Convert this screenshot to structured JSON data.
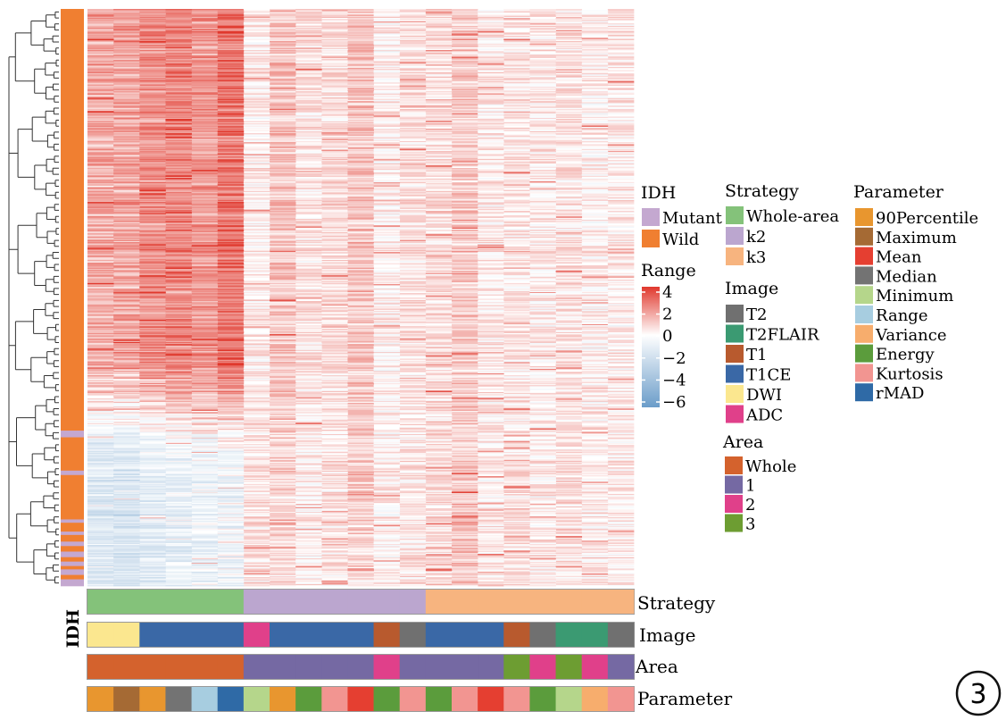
{
  "chart_data": {
    "type": "heatmap",
    "n_columns": 21,
    "row_annotation": {
      "title": "IDH",
      "categories": [
        "Mutant",
        "Wild"
      ],
      "colors": {
        "Mutant": "#c4a8d0",
        "Wild": "#f07f31"
      },
      "segments": [
        {
          "label": "Wild",
          "rows": 380
        },
        {
          "label": "Mutant",
          "rows": 6
        },
        {
          "label": "Wild",
          "rows": 30
        },
        {
          "label": "Mutant",
          "rows": 4
        },
        {
          "label": "Wild",
          "rows": 40
        },
        {
          "label": "Mutant",
          "rows": 3
        },
        {
          "label": "Wild",
          "rows": 8
        },
        {
          "label": "Mutant",
          "rows": 3
        },
        {
          "label": "Wild",
          "rows": 6
        },
        {
          "label": "Mutant",
          "rows": 4
        },
        {
          "label": "Wild",
          "rows": 5
        },
        {
          "label": "Mutant",
          "rows": 5
        },
        {
          "label": "Wild",
          "rows": 4
        },
        {
          "label": "Mutant",
          "rows": 4
        },
        {
          "label": "Wild",
          "rows": 3
        },
        {
          "label": "Mutant",
          "rows": 5
        },
        {
          "label": "Wild",
          "rows": 4
        },
        {
          "label": "Mutant",
          "rows": 6
        }
      ]
    },
    "color_scale": {
      "title": "Range",
      "ticks": [
        "4",
        "2",
        "0",
        "−2",
        "−4",
        "−6"
      ],
      "min": -6,
      "max": 4,
      "low_color": "#6a9cc9",
      "mid_color": "#ffffff",
      "high_color": "#e0382d"
    },
    "column_means": {
      "top_block": [
        1.6,
        1.7,
        2.2,
        2.4,
        2.0,
        2.7,
        0.4,
        1.2,
        0.6,
        0.7,
        1.1,
        0.3,
        0.6,
        0.7,
        1.0,
        0.4,
        0.5,
        0.4,
        0.6,
        0.3,
        0.4
      ],
      "bottom_block": [
        -1.3,
        -1.5,
        -1.0,
        -0.8,
        -0.6,
        -0.5,
        0.6,
        0.8,
        0.3,
        0.5,
        0.9,
        0.3,
        0.5,
        0.7,
        1.1,
        0.4,
        0.6,
        0.4,
        0.6,
        0.4,
        0.4
      ]
    },
    "column_annotations": [
      {
        "title": "Strategy",
        "categories": [
          "Whole-area",
          "k2",
          "k3"
        ],
        "colors": {
          "Whole-area": "#84c27a",
          "k2": "#bba6cf",
          "k3": "#f7b47f"
        },
        "values": [
          "Whole-area",
          "Whole-area",
          "Whole-area",
          "Whole-area",
          "Whole-area",
          "Whole-area",
          "k2",
          "k2",
          "k2",
          "k2",
          "k2",
          "k2",
          "k2",
          "k3",
          "k3",
          "k3",
          "k3",
          "k3",
          "k3",
          "k3",
          "k3"
        ]
      },
      {
        "title": "Image",
        "categories": [
          "T2",
          "T2FLAIR",
          "T1",
          "T1CE",
          "DWI",
          "ADC"
        ],
        "colors": {
          "T2": "#707070",
          "T2FLAIR": "#3b9a72",
          "T1": "#b85a2e",
          "T1CE": "#3a68a6",
          "DWI": "#fbe78f",
          "ADC": "#e0408a"
        },
        "values": [
          "DWI",
          "DWI",
          "T1CE",
          "T1CE",
          "T1CE",
          "T1CE",
          "ADC",
          "T1CE",
          "T1CE",
          "T1CE",
          "T1CE",
          "T1",
          "T2",
          "T1CE",
          "T1CE",
          "T1CE",
          "T1",
          "T2",
          "T2FLAIR",
          "T2FLAIR",
          "T2"
        ]
      },
      {
        "title": "Area",
        "categories": [
          "Whole",
          "1",
          "2",
          "3"
        ],
        "colors": {
          "Whole": "#d4622d",
          "1": "#7569a3",
          "2": "#e0408a",
          "3": "#6d9d32"
        },
        "values": [
          "Whole",
          "Whole",
          "Whole",
          "Whole",
          "Whole",
          "Whole",
          "1",
          "1",
          "1",
          "1",
          "1",
          "2",
          "1",
          "1",
          "1",
          "1",
          "3",
          "2",
          "3",
          "2",
          "1"
        ]
      },
      {
        "title": "Parameter",
        "categories": [
          "90Percentile",
          "Maximum",
          "Mean",
          "Median",
          "Minimum",
          "Range",
          "Variance",
          "Energy",
          "Kurtosis",
          "rMAD"
        ],
        "colors": {
          "90Percentile": "#e8962f",
          "Maximum": "#a56a34",
          "Mean": "#e53f31",
          "Median": "#737373",
          "Minimum": "#b5d68b",
          "Range": "#a7cde0",
          "Variance": "#f7ad6d",
          "Energy": "#5b9c3c",
          "Kurtosis": "#f29591",
          "rMAD": "#2f6aa6"
        },
        "values": [
          "90Percentile",
          "Maximum",
          "90Percentile",
          "Median",
          "Range",
          "rMAD",
          "Minimum",
          "90Percentile",
          "Energy",
          "Kurtosis",
          "Mean",
          "Energy",
          "Kurtosis",
          "Energy",
          "Kurtosis",
          "Mean",
          "Kurtosis",
          "Energy",
          "Minimum",
          "Variance",
          "Kurtosis"
        ]
      }
    ]
  },
  "labels": {
    "idh_axis": "IDH",
    "bar_strategy": "Strategy",
    "bar_image": "Image",
    "bar_area": "Area",
    "bar_parameter": "Parameter",
    "panel_number": "3"
  }
}
